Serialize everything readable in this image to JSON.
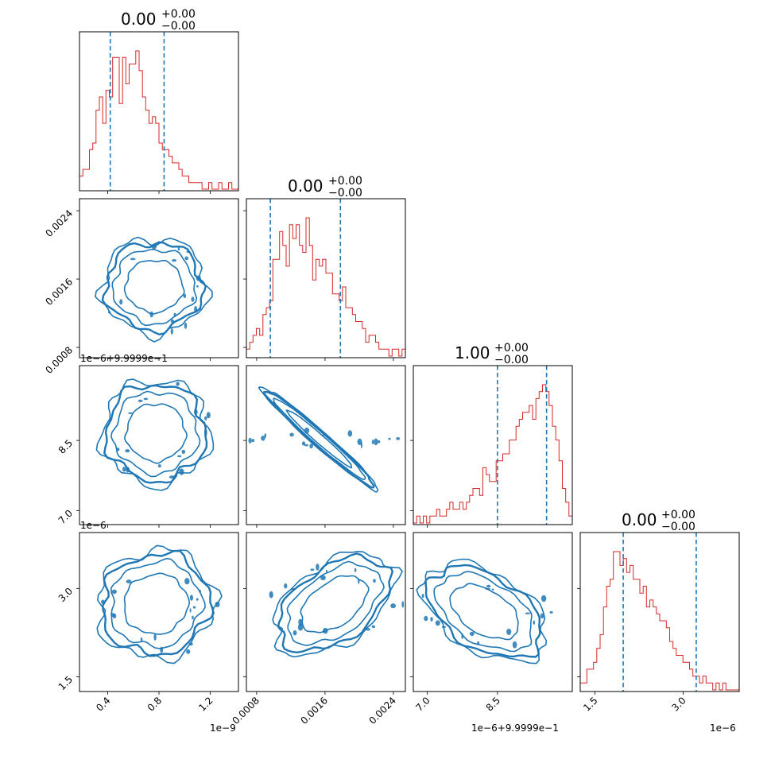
{
  "colors": {
    "histogram": "#d62728",
    "quantile": "#1f77b4",
    "contour": "#1f77b4"
  },
  "chart_data": {
    "type": "corner",
    "parameters": [
      {
        "title": {
          "value": "0.00",
          "plus": "+0.00",
          "minus": "−0.00"
        },
        "range": [
          0.18,
          1.42
        ],
        "quantiles": [
          0.42,
          0.84
        ],
        "ticks": [
          "0.4",
          "0.8",
          "1.2"
        ],
        "tick_values": [
          0.4,
          0.8,
          1.2
        ],
        "offset_text": "1e−9",
        "hist_bins": [
          2,
          3,
          3,
          6,
          7,
          12,
          14,
          10,
          15,
          14,
          20,
          20,
          13,
          20,
          16,
          19,
          19,
          21,
          18,
          14,
          12,
          10,
          11,
          10,
          7,
          6,
          6,
          5,
          4,
          4,
          3,
          2,
          2,
          1,
          1,
          1,
          1,
          0,
          0,
          1,
          0,
          0,
          1,
          0,
          0,
          1,
          0,
          0
        ]
      },
      {
        "title": {
          "value": "0.00",
          "plus": "+0.00",
          "minus": "−0.00"
        },
        "range": [
          0.00068,
          0.00254
        ],
        "quantiles": [
          0.00096,
          0.00178
        ],
        "ticks": [
          "0.0008",
          "0.0016",
          "0.0024"
        ],
        "tick_values": [
          0.0008,
          0.0016,
          0.0024
        ],
        "offset_text": "",
        "hist_bins": [
          1,
          2,
          3,
          4,
          3,
          6,
          7,
          8,
          14,
          14,
          18,
          16,
          13,
          19,
          17,
          19,
          16,
          15,
          20,
          16,
          11,
          14,
          13,
          14,
          12,
          12,
          9,
          9,
          8,
          10,
          7,
          7,
          6,
          5,
          5,
          4,
          2,
          3,
          3,
          2,
          1,
          1,
          1,
          0,
          1,
          1,
          0,
          1
        ]
      },
      {
        "title": {
          "value": "1.00",
          "plus": "+0.00",
          "minus": "−0.00"
        },
        "range": [
          6.7,
          10.1
        ],
        "quantiles": [
          8.5,
          9.55
        ],
        "ticks": [
          "7.0",
          "8.5"
        ],
        "tick_values": [
          7.0,
          8.5
        ],
        "offset_text": "1e−6+9.9999e−1",
        "hist_bins": [
          0,
          1,
          0,
          1,
          0,
          1,
          1,
          2,
          1,
          1,
          2,
          3,
          2,
          2,
          3,
          2,
          3,
          4,
          5,
          5,
          4,
          8,
          7,
          6,
          6,
          9,
          9,
          10,
          10,
          12,
          12,
          14,
          15,
          16,
          16,
          17,
          15,
          18,
          19,
          20,
          19,
          17,
          14,
          12,
          9,
          5,
          3,
          1
        ]
      },
      {
        "title": {
          "value": "0.00",
          "plus": "+0.00",
          "minus": "−0.00"
        },
        "range": [
          1.25,
          3.95
        ],
        "quantiles": [
          1.98,
          3.22
        ],
        "ticks": [
          "1.5",
          "3.0"
        ],
        "tick_values": [
          1.5,
          3.0
        ],
        "offset_text": "1e−6",
        "hist_bins": [
          1,
          1,
          3,
          3,
          4,
          6,
          8,
          12,
          15,
          16,
          20,
          20,
          18,
          19,
          17,
          18,
          16,
          16,
          14,
          15,
          12,
          13,
          12,
          11,
          10,
          10,
          9,
          7,
          6,
          5,
          5,
          4,
          4,
          3,
          2,
          2,
          1,
          2,
          1,
          1,
          0,
          1,
          0,
          1,
          0,
          0,
          0,
          0
        ]
      }
    ],
    "y_axis_offsets": {
      "row1": "1e−6+9.9999e−1",
      "row2": "1e−6"
    }
  }
}
